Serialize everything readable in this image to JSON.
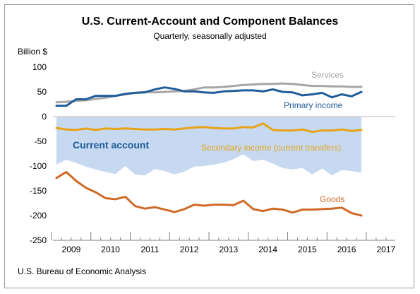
{
  "title": "U.S. Current-Account and Component Balances",
  "subtitle": "Quarterly, seasonally adjusted",
  "source": "U.S. Bureau of Economic Analysis",
  "chart_data": {
    "type": "line",
    "ylabel": "Billion $",
    "ylim": [
      -250,
      100
    ],
    "yticks": [
      100,
      50,
      0,
      -50,
      -100,
      -150,
      -200,
      -250
    ],
    "year_labels": [
      "2009",
      "2010",
      "2011",
      "2012",
      "2013",
      "2014",
      "2015",
      "2016",
      "2017"
    ],
    "quarters": [
      "2009Q1",
      "2009Q2",
      "2009Q3",
      "2009Q4",
      "2010Q1",
      "2010Q2",
      "2010Q3",
      "2010Q4",
      "2011Q1",
      "2011Q2",
      "2011Q3",
      "2011Q4",
      "2012Q1",
      "2012Q2",
      "2012Q3",
      "2012Q4",
      "2013Q1",
      "2013Q2",
      "2013Q3",
      "2013Q4",
      "2014Q1",
      "2014Q2",
      "2014Q3",
      "2014Q4",
      "2015Q1",
      "2015Q2",
      "2015Q3",
      "2015Q4",
      "2016Q1",
      "2016Q2",
      "2016Q3",
      "2016Q4"
    ],
    "grid": false,
    "series": [
      {
        "name": "Current account",
        "kind": "area",
        "color": "#c6d9f1",
        "label_color": "#1f5c99",
        "values": [
          -97,
          -87,
          -94,
          -101,
          -107,
          -112,
          -116,
          -100,
          -117,
          -119,
          -106,
          -110,
          -117,
          -111,
          -101,
          -100,
          -97,
          -93,
          -86,
          -76,
          -90,
          -87,
          -95,
          -104,
          -107,
          -104,
          -117,
          -105,
          -119,
          -108,
          -110,
          -113
        ]
      },
      {
        "name": "Services",
        "kind": "line",
        "color": "#a6a6a6",
        "values": [
          29,
          30,
          32,
          33,
          36,
          38,
          42,
          45,
          48,
          50,
          49,
          50,
          51,
          52,
          55,
          59,
          59,
          60,
          62,
          64,
          65,
          66,
          66,
          67,
          66,
          64,
          62,
          62,
          61,
          61,
          60,
          60
        ]
      },
      {
        "name": "Primary income",
        "kind": "line",
        "color": "#1f5c99",
        "values": [
          22,
          22,
          35,
          35,
          42,
          42,
          42,
          46,
          48,
          49,
          55,
          59,
          56,
          51,
          51,
          49,
          48,
          51,
          52,
          53,
          53,
          51,
          55,
          50,
          49,
          43,
          45,
          48,
          39,
          45,
          41,
          50
        ]
      },
      {
        "name": "Secondary income (current transfers)",
        "kind": "line",
        "color": "#e8a317",
        "values": [
          -23,
          -26,
          -27,
          -24,
          -27,
          -24,
          -25,
          -24,
          -25,
          -26,
          -26,
          -25,
          -26,
          -24,
          -22,
          -21,
          -23,
          -24,
          -24,
          -21,
          -22,
          -14,
          -27,
          -28,
          -28,
          -26,
          -31,
          -28,
          -28,
          -26,
          -29,
          -27
        ]
      },
      {
        "name": "Goods",
        "kind": "line",
        "color": "#d06a27",
        "values": [
          -124,
          -112,
          -130,
          -144,
          -153,
          -165,
          -167,
          -162,
          -181,
          -186,
          -183,
          -188,
          -193,
          -187,
          -178,
          -180,
          -178,
          -178,
          -179,
          -170,
          -187,
          -191,
          -186,
          -188,
          -194,
          -188,
          -188,
          -187,
          -186,
          -184,
          -195,
          -200
        ]
      }
    ]
  }
}
